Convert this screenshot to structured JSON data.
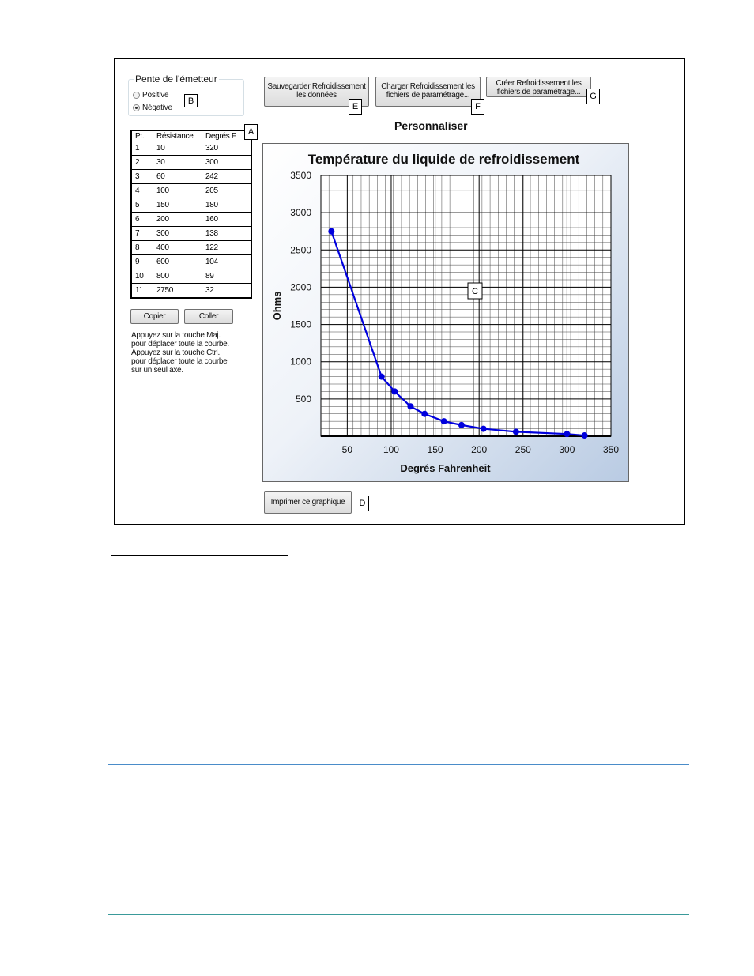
{
  "emitter": {
    "group_title": "Pente de l'émetteur",
    "options": [
      {
        "label": "Positive",
        "checked": false
      },
      {
        "label": "Négative",
        "checked": true
      }
    ],
    "tag": "B"
  },
  "table": {
    "tag": "A",
    "headers": [
      "Pt.",
      "Résistance",
      "Degrés F"
    ],
    "rows": [
      [
        "1",
        "10",
        "320"
      ],
      [
        "2",
        "30",
        "300"
      ],
      [
        "3",
        "60",
        "242"
      ],
      [
        "4",
        "100",
        "205"
      ],
      [
        "5",
        "150",
        "180"
      ],
      [
        "6",
        "200",
        "160"
      ],
      [
        "7",
        "300",
        "138"
      ],
      [
        "8",
        "400",
        "122"
      ],
      [
        "9",
        "600",
        "104"
      ],
      [
        "10",
        "800",
        "89"
      ],
      [
        "11",
        "2750",
        "32"
      ]
    ]
  },
  "buttons": {
    "copy": "Copier",
    "paste": "Coller",
    "save_line1": "Sauvegarder Refroidissement",
    "save_line2": "les données",
    "save_tag": "E",
    "load_line1": "Charger Refroidissement les",
    "load_line2": "fichiers de paramétrage...",
    "load_tag": "F",
    "create_line1": "Créer Refroidissement les",
    "create_line2": "fichiers de paramétrage...",
    "create_tag": "G",
    "print": "Imprimer ce graphique",
    "print_tag": "D"
  },
  "hint": {
    "line1": "Appuyez sur la touche Maj.",
    "line2": "pour déplacer toute la courbe.",
    "line3": "Appuyez sur la touche Ctrl.",
    "line4": "pour déplacer toute la courbe",
    "line5": "sur un seul axe."
  },
  "subtitle": "Personnaliser",
  "colors": {
    "series": "#0000dd",
    "grid": "#000000",
    "rule_blue": "#4a8cc9",
    "rule_teal": "#3a9a9a"
  },
  "chart_data": {
    "type": "line",
    "title": "Température du liquide de refroidissement",
    "xlabel": "Degrés Fahrenheit",
    "ylabel": "Ohms",
    "xlim": [
      20,
      350
    ],
    "ylim": [
      0,
      3500
    ],
    "xticks": [
      50,
      100,
      150,
      200,
      250,
      300,
      350
    ],
    "yticks": [
      500,
      1000,
      1500,
      2000,
      2500,
      3000,
      3500
    ],
    "grid": true,
    "tag": "C",
    "series": [
      {
        "x": [
          32,
          89,
          104,
          122,
          138,
          160,
          180,
          205,
          242,
          300,
          320
        ],
        "y": [
          2750,
          800,
          600,
          400,
          300,
          200,
          150,
          100,
          60,
          30,
          10
        ]
      }
    ]
  }
}
